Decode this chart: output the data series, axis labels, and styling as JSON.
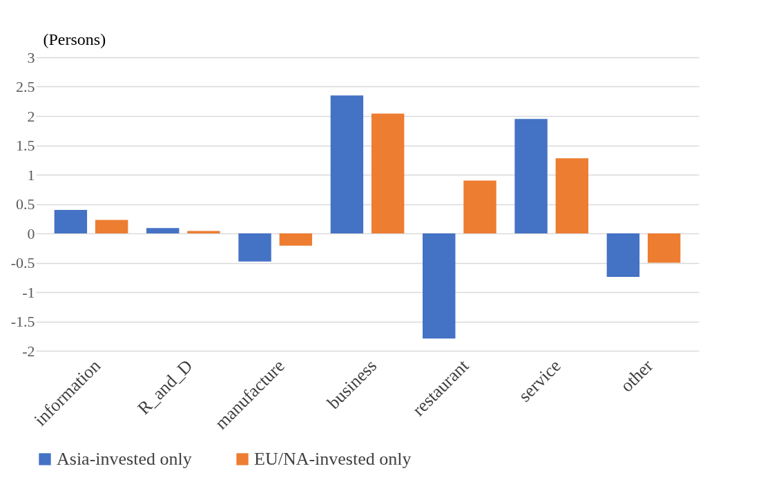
{
  "chart_data": {
    "type": "bar",
    "ylabel": "(Persons)",
    "categories": [
      "information",
      "R_and_D",
      "manufacture",
      "business",
      "restaurant",
      "service",
      "other"
    ],
    "series": [
      {
        "name": "Asia-invested only",
        "color": "#4472c4",
        "values": [
          0.4,
          0.09,
          -0.48,
          2.35,
          -1.79,
          1.95,
          -0.74
        ]
      },
      {
        "name": "EU/NA-invested only",
        "color": "#ed7d31",
        "values": [
          0.23,
          0.04,
          -0.21,
          2.04,
          0.9,
          1.28,
          -0.5
        ]
      }
    ],
    "ylim": [
      -2,
      3
    ],
    "yticks": [
      -2,
      -1.5,
      -1,
      -0.5,
      0,
      0.5,
      1,
      1.5,
      2,
      2.5,
      3
    ],
    "grid": "y",
    "legend": "bottom"
  }
}
